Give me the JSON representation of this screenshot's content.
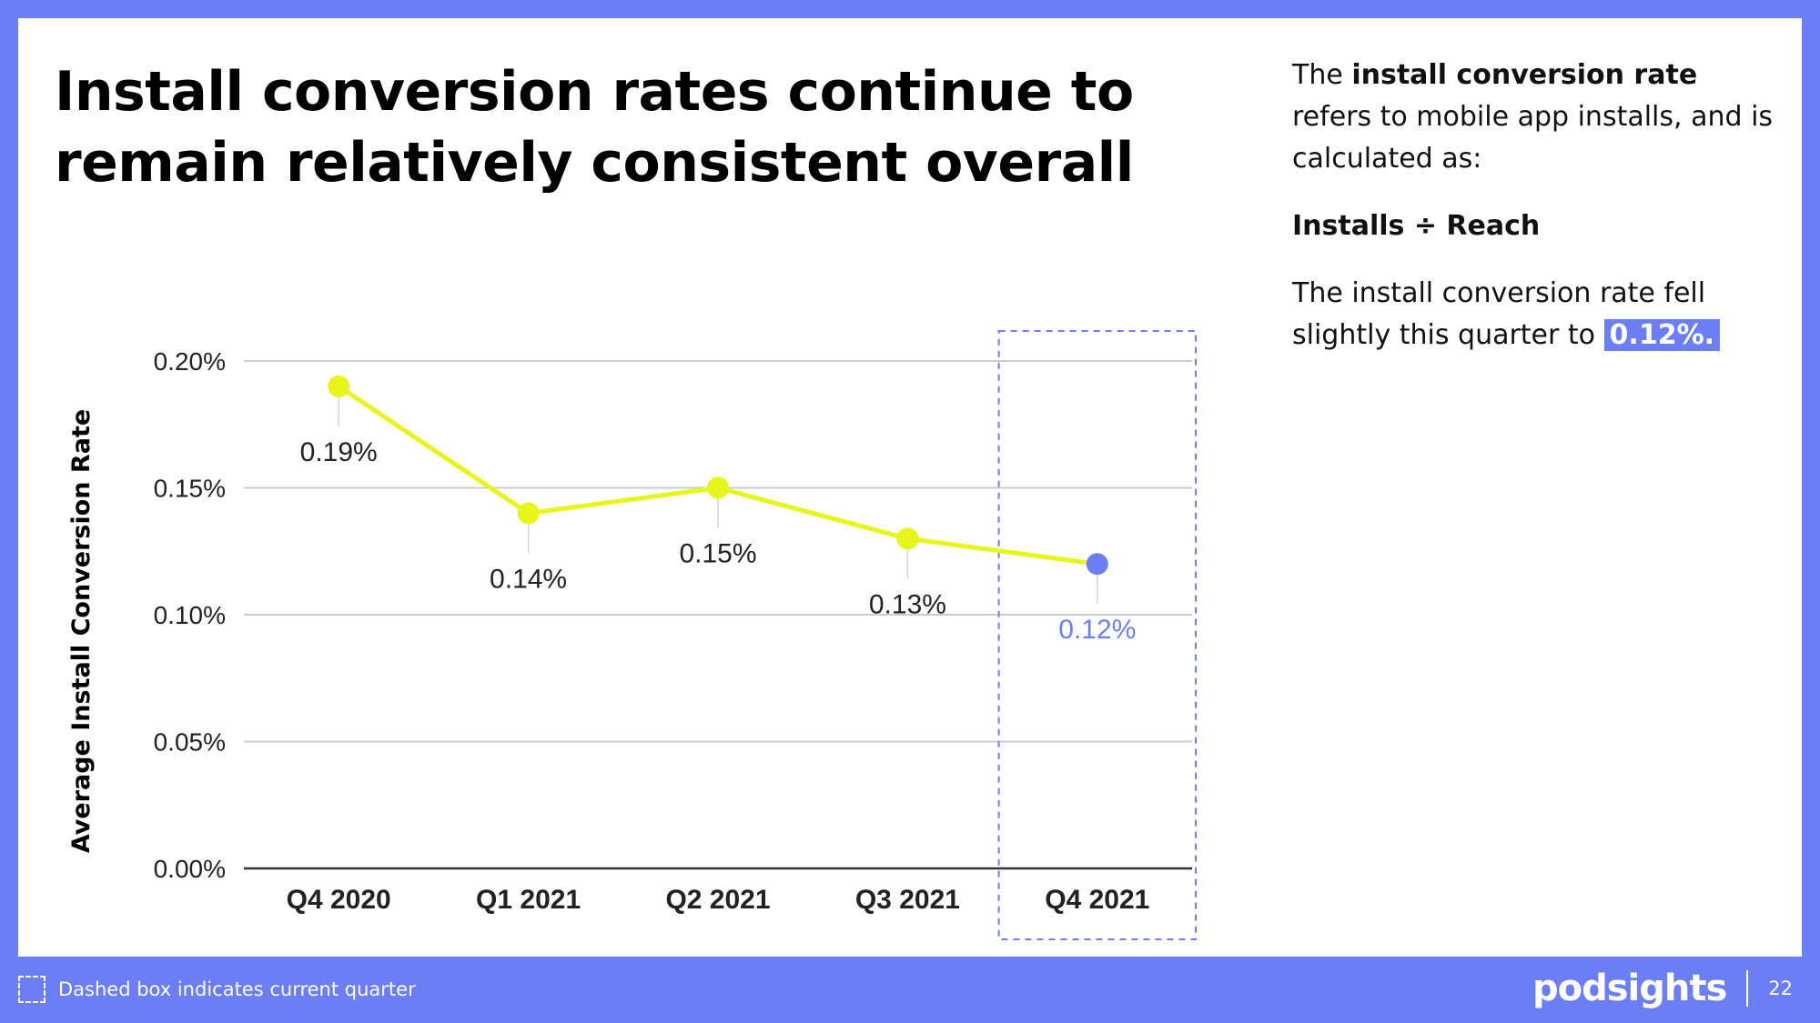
{
  "slide": {
    "title_lines": [
      "Install conversion rates continue to",
      "remain relatively consistent overall"
    ]
  },
  "side_text": {
    "p1_pre": "The ",
    "p1_bold": "install conversion rate",
    "p1_post": " refers to mobile app installs, and is calculated as:",
    "formula": "Installs ÷ Reach",
    "p3_pre": "The install conversion rate fell slightly this quarter to ",
    "p3_highlight": "0.12%."
  },
  "footer": {
    "legend_text": "Dashed box indicates current quarter",
    "brand": "podsights",
    "page_number": "22"
  },
  "colors": {
    "accent": "#6b7ef5",
    "line": "#e8f51a",
    "highlight_point": "#6b7ef5",
    "grid": "#cccccc"
  },
  "chart_data": {
    "type": "line",
    "title": "",
    "xlabel": "",
    "ylabel": "Average Install Conversion Rate",
    "categories": [
      "Q4 2020",
      "Q1 2021",
      "Q2 2021",
      "Q3 2021",
      "Q4 2021"
    ],
    "values": [
      0.19,
      0.14,
      0.15,
      0.13,
      0.12
    ],
    "data_labels": [
      "0.19%",
      "0.14%",
      "0.15%",
      "0.13%",
      "0.12%"
    ],
    "ylim": [
      0,
      0.2
    ],
    "yticks": [
      0.0,
      0.05,
      0.1,
      0.15,
      0.2
    ],
    "ytick_labels": [
      "0.00%",
      "0.05%",
      "0.10%",
      "0.15%",
      "0.20%"
    ],
    "grid": true,
    "highlighted_category": "Q4 2021",
    "highlight_note": "current quarter"
  }
}
